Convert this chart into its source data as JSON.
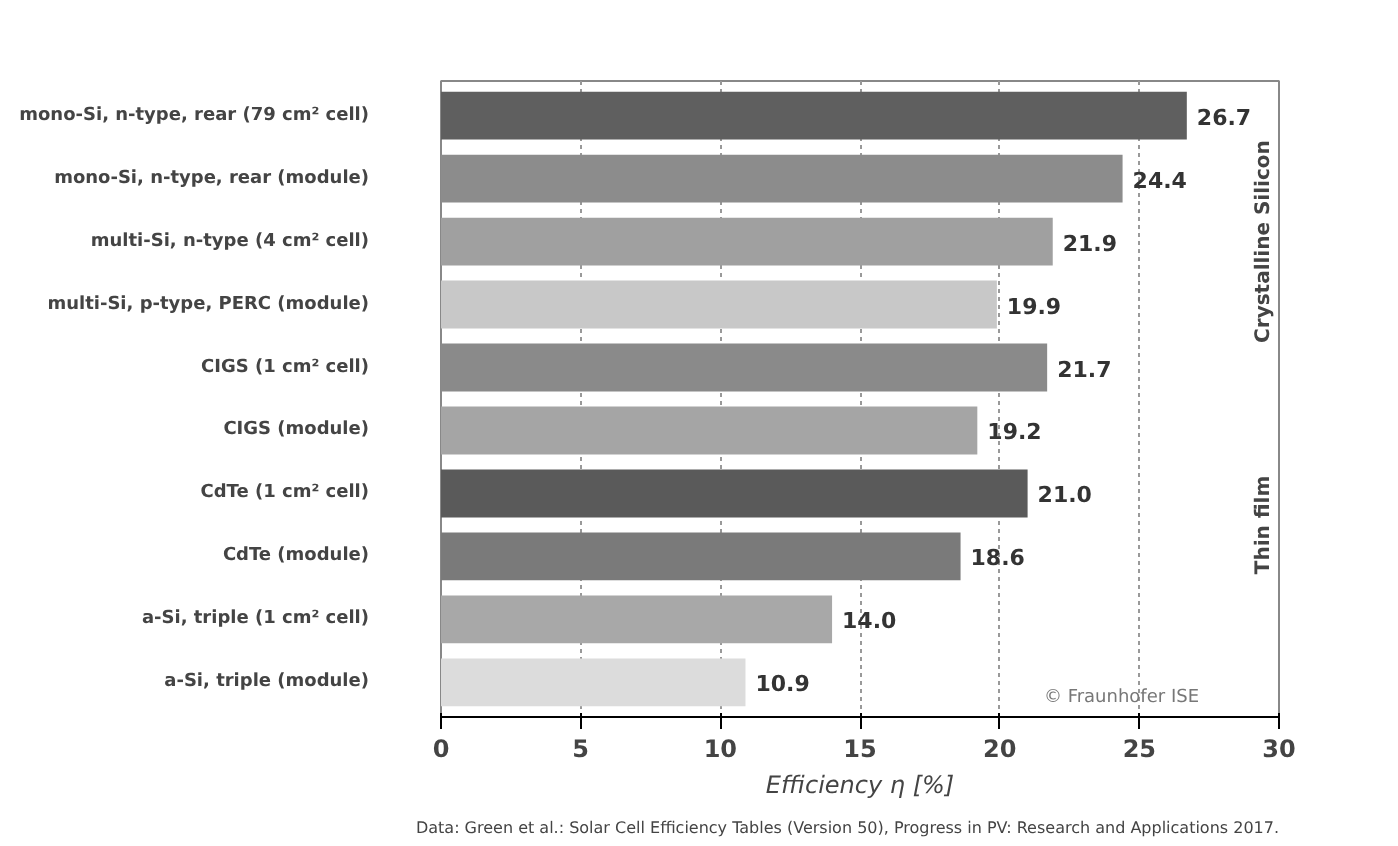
{
  "chart_data": {
    "type": "bar",
    "orientation": "horizontal",
    "xlabel": "Efficiency η [%]",
    "categories": [
      "mono-Si, n-type, rear (79 cm² cell)",
      "mono-Si, n-type, rear (module)",
      "multi-Si, n-type (4 cm² cell)",
      "multi-Si, p-type, PERC (module)",
      "CIGS (1 cm² cell)",
      "CIGS (module)",
      "CdTe (1 cm² cell)",
      "CdTe (module)",
      "a-Si, triple (1 cm² cell)",
      "a-Si, triple (module)"
    ],
    "values": [
      26.7,
      24.4,
      21.9,
      19.9,
      21.7,
      19.2,
      21.0,
      18.6,
      14.0,
      10.9
    ],
    "value_labels": [
      "26.7",
      "24.4",
      "21.9",
      "19.9",
      "21.7",
      "19.2",
      "21.0",
      "18.6",
      "14.0",
      "10.9"
    ],
    "colors": [
      "#5f5f5f",
      "#8c8c8c",
      "#a0a0a0",
      "#c8c8c8",
      "#8a8a8a",
      "#a5a5a5",
      "#5a5a5a",
      "#7a7a7a",
      "#a8a8a8",
      "#dcdcdc"
    ],
    "xlim": [
      0,
      30
    ],
    "xticks": [
      0,
      5,
      10,
      15,
      20,
      25,
      30
    ],
    "grid": "x",
    "annotations": [
      "Crystalline Silicon",
      "Thin film",
      "© Fraunhofer ISE",
      "Data: Green et al.: Solar Cell Efficiency Tables (Version 50), Progress in PV: Research and Applications 2017."
    ]
  }
}
